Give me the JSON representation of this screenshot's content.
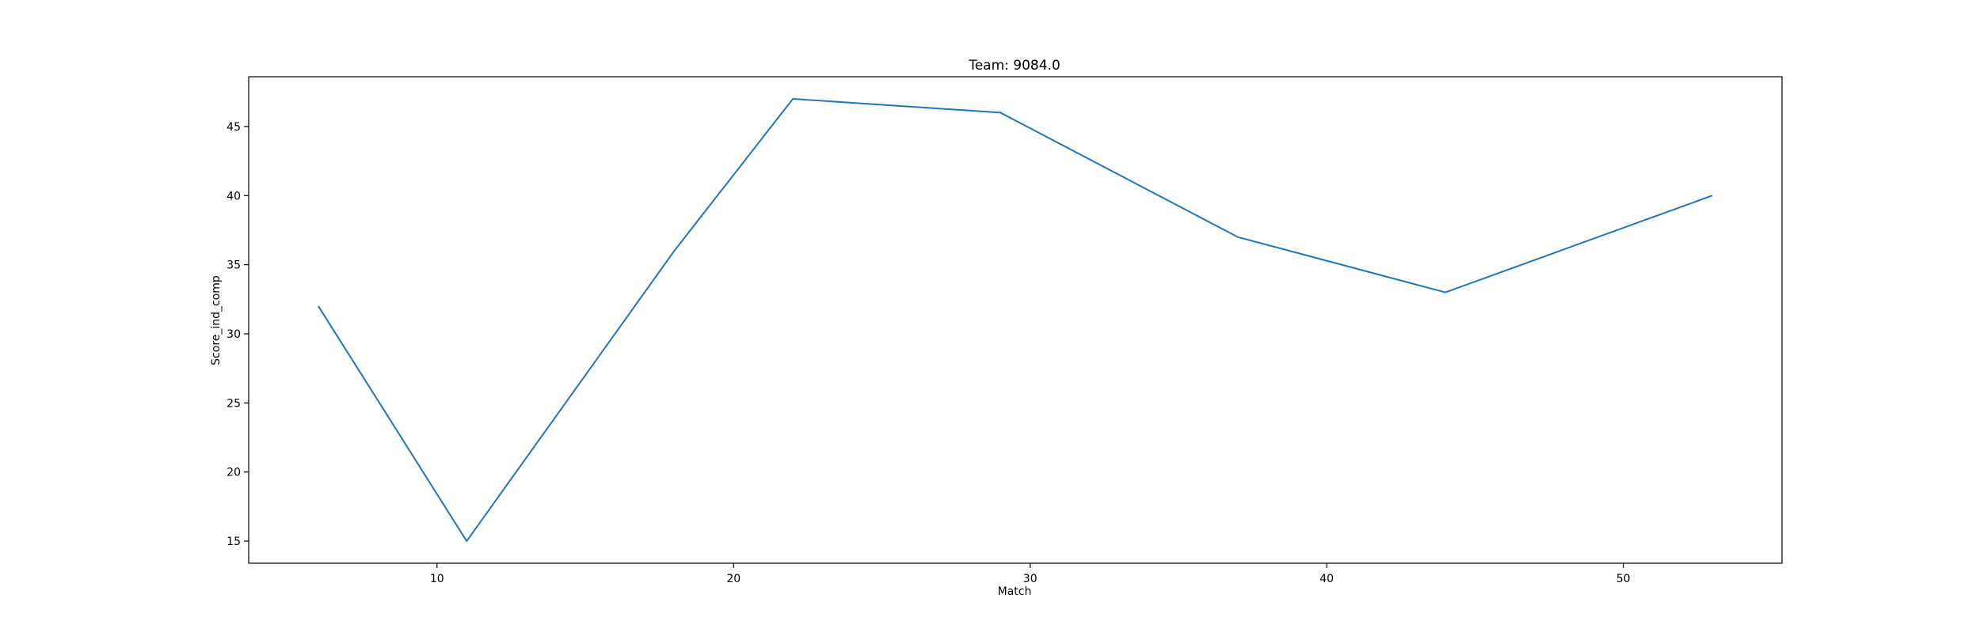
{
  "chart_data": {
    "type": "line",
    "title": "Team: 9084.0",
    "xlabel": "Match",
    "ylabel": "Score_ind_comp",
    "xlim": [
      3.65,
      55.35
    ],
    "ylim": [
      13.4,
      48.6
    ],
    "x_ticks": [
      10,
      20,
      30,
      40,
      50
    ],
    "y_ticks": [
      15,
      20,
      25,
      30,
      35,
      40,
      45
    ],
    "grid": false,
    "series": [
      {
        "color": "#1f77b4",
        "x": [
          6,
          11,
          18,
          22,
          29,
          37,
          44,
          53
        ],
        "y": [
          32,
          15,
          36,
          47,
          46,
          37,
          33,
          40
        ]
      }
    ]
  }
}
